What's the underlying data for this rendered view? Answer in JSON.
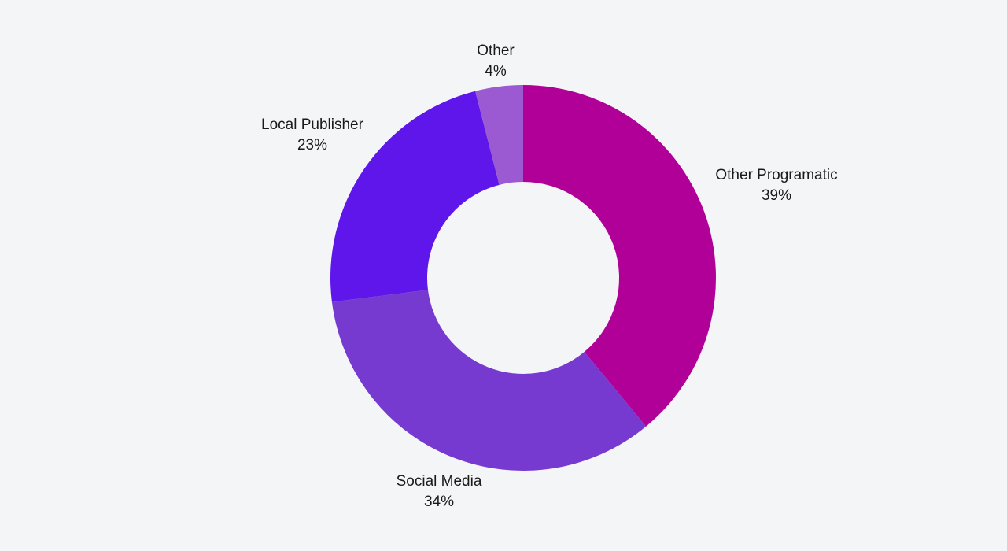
{
  "chart_data": {
    "type": "pie",
    "variant": "donut",
    "background": "#f4f5f7",
    "slices": [
      {
        "label": "Other Programatic",
        "value": 39,
        "display": "39%",
        "color": "#b10097"
      },
      {
        "label": "Social Media",
        "value": 34,
        "display": "34%",
        "color": "#763ad0"
      },
      {
        "label": "Local Publisher",
        "value": 23,
        "display": "23%",
        "color": "#5f16eb"
      },
      {
        "label": "Other",
        "value": 4,
        "display": "4%",
        "color": "#9c5ad2"
      }
    ]
  }
}
